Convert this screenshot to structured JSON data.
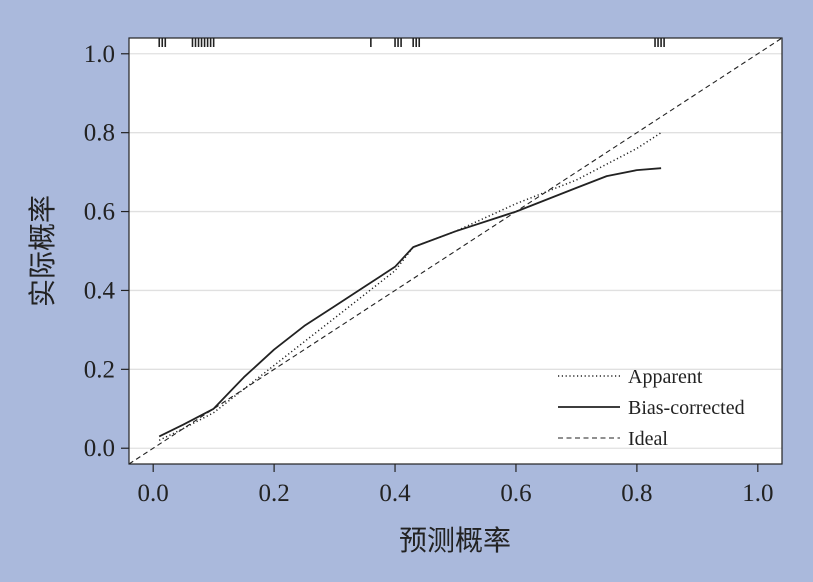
{
  "colors": {
    "background": "#aab9dc",
    "plot_background": "#ffffff",
    "grid": "#e0e0e0",
    "ink": "#222222"
  },
  "chart_data": {
    "type": "line",
    "title": "",
    "xlabel": "预测概率",
    "ylabel": "实际概率",
    "xlim": [
      -0.04,
      1.04
    ],
    "ylim": [
      -0.04,
      1.04
    ],
    "x_ticks": [
      {
        "value": 0.0,
        "label": "0.0"
      },
      {
        "value": 0.2,
        "label": "0.2"
      },
      {
        "value": 0.4,
        "label": "0.4"
      },
      {
        "value": 0.6,
        "label": "0.6"
      },
      {
        "value": 0.8,
        "label": "0.8"
      },
      {
        "value": 1.0,
        "label": "1.0"
      }
    ],
    "y_ticks": [
      {
        "value": 0.0,
        "label": "0.0"
      },
      {
        "value": 0.2,
        "label": "0.2"
      },
      {
        "value": 0.4,
        "label": "0.4"
      },
      {
        "value": 0.6,
        "label": "0.6"
      },
      {
        "value": 0.8,
        "label": "0.8"
      },
      {
        "value": 1.0,
        "label": "1.0"
      }
    ],
    "grid": "horizontal",
    "legend_position": "bottom-right",
    "series": [
      {
        "name": "Apparent",
        "style": "dotted",
        "x": [
          0.01,
          0.05,
          0.1,
          0.15,
          0.2,
          0.25,
          0.3,
          0.35,
          0.4,
          0.43,
          0.5,
          0.6,
          0.7,
          0.8,
          0.84
        ],
        "y": [
          0.02,
          0.05,
          0.09,
          0.15,
          0.21,
          0.27,
          0.33,
          0.39,
          0.45,
          0.51,
          0.55,
          0.62,
          0.68,
          0.76,
          0.8
        ]
      },
      {
        "name": "Bias-corrected",
        "style": "solid",
        "x": [
          0.01,
          0.05,
          0.1,
          0.15,
          0.2,
          0.25,
          0.3,
          0.35,
          0.4,
          0.43,
          0.5,
          0.6,
          0.7,
          0.75,
          0.8,
          0.84
        ],
        "y": [
          0.03,
          0.06,
          0.1,
          0.18,
          0.25,
          0.31,
          0.36,
          0.41,
          0.46,
          0.51,
          0.55,
          0.6,
          0.66,
          0.69,
          0.705,
          0.71
        ]
      },
      {
        "name": "Ideal",
        "style": "dashed",
        "x": [
          -0.04,
          1.04
        ],
        "y": [
          -0.04,
          1.04
        ]
      }
    ],
    "rug_x": [
      0.01,
      0.015,
      0.02,
      0.065,
      0.07,
      0.075,
      0.08,
      0.085,
      0.09,
      0.095,
      0.1,
      0.36,
      0.4,
      0.405,
      0.41,
      0.43,
      0.435,
      0.44,
      0.83,
      0.835,
      0.84,
      0.845
    ]
  }
}
